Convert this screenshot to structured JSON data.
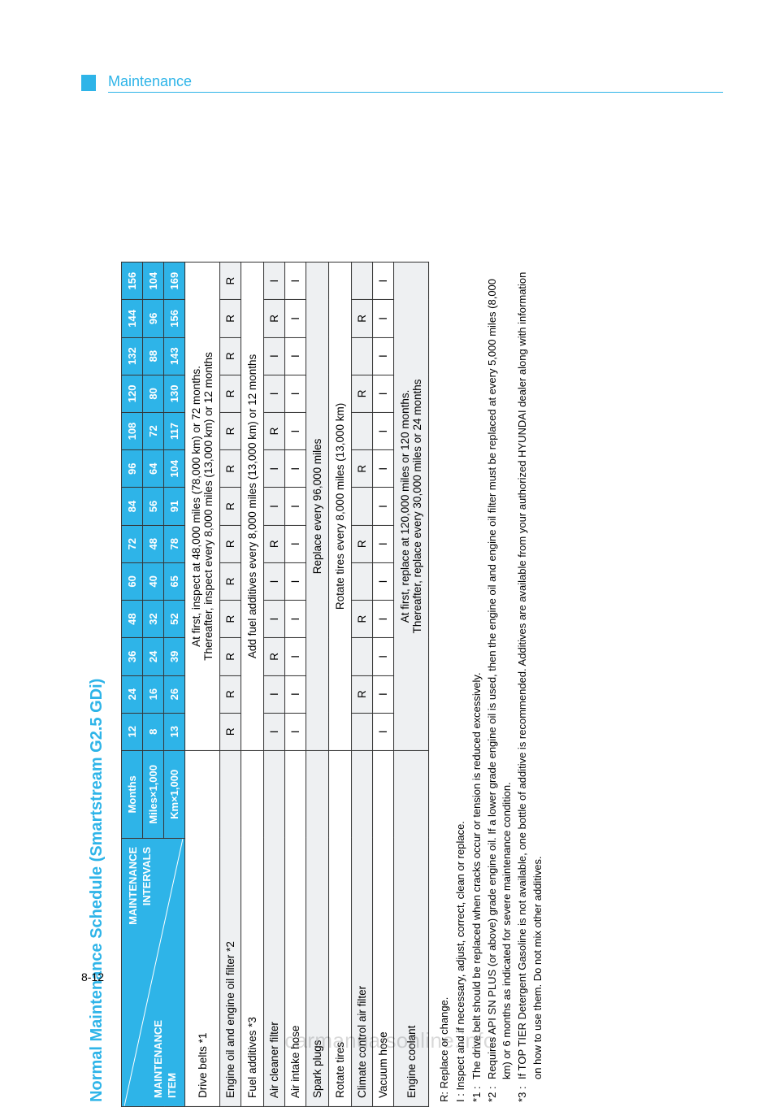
{
  "colors": {
    "accent": "#2eb4e8",
    "zebra": "#eef0f2",
    "border": "#333333",
    "bg": "#ffffff",
    "watermark": "rgba(0,0,0,0.15)"
  },
  "header": {
    "section": "Maintenance",
    "title": "Normal Maintenance Schedule (Smartstream G2.5 GDi)"
  },
  "corner": {
    "top": "MAINTENANCE\nINTERVALS",
    "bottom": "MAINTENANCE\nITEM"
  },
  "intervals": {
    "rows": [
      {
        "label": "Months",
        "values": [
          "12",
          "24",
          "36",
          "48",
          "60",
          "72",
          "84",
          "96",
          "108",
          "120",
          "132",
          "144",
          "156"
        ]
      },
      {
        "label": "Miles×1,000",
        "values": [
          "8",
          "16",
          "24",
          "32",
          "40",
          "48",
          "56",
          "64",
          "72",
          "80",
          "88",
          "96",
          "104"
        ]
      },
      {
        "label": "Km×1,000",
        "values": [
          "13",
          "26",
          "39",
          "52",
          "65",
          "78",
          "91",
          "104",
          "117",
          "130",
          "143",
          "156",
          "169"
        ]
      }
    ]
  },
  "items": [
    {
      "name": "Drive belts *1",
      "span": "At first, inspect at 48,000 miles (78,000 km) or 72 months.\nThereafter, inspect every 8,000 miles (13,000 km) or 12 months",
      "zebra": false
    },
    {
      "name": "Engine oil and engine oil filter *2",
      "cells": [
        "R",
        "R",
        "R",
        "R",
        "R",
        "R",
        "R",
        "R",
        "R",
        "R",
        "R",
        "R",
        "R"
      ],
      "zebra": true
    },
    {
      "name": "Fuel additives *3",
      "span": "Add fuel additives every 8,000 miles (13,000 km) or 12 months",
      "zebra": false
    },
    {
      "name": "Air cleaner filter",
      "cells": [
        "I",
        "I",
        "R",
        "I",
        "I",
        "R",
        "I",
        "I",
        "R",
        "I",
        "I",
        "R",
        "I"
      ],
      "zebra": true
    },
    {
      "name": "Air intake hose",
      "cells": [
        "I",
        "I",
        "I",
        "I",
        "I",
        "I",
        "I",
        "I",
        "I",
        "I",
        "I",
        "I",
        "I"
      ],
      "zebra": false
    },
    {
      "name": "Spark plugs",
      "span": "Replace every 96,000 miles",
      "zebra": true
    },
    {
      "name": "Rotate tires",
      "span": "Rotate tires every 8,000 miles (13,000 km)",
      "zebra": false
    },
    {
      "name": "Climate control air filter",
      "cells": [
        "",
        "R",
        "",
        "R",
        "",
        "R",
        "",
        "R",
        "",
        "R",
        "",
        "R",
        ""
      ],
      "zebra": true
    },
    {
      "name": "Vacuum hose",
      "cells": [
        "I",
        "I",
        "I",
        "I",
        "I",
        "I",
        "I",
        "I",
        "I",
        "I",
        "I",
        "I",
        "I"
      ],
      "zebra": false
    },
    {
      "name": "Engine coolant",
      "span": "At first, replace at 120,000 miles or 120 months.\nThereafter, replace every 30,000 miles or 24 months",
      "zebra": true
    }
  ],
  "legend": {
    "r": "R: Replace or change.",
    "i": "I : Inspect and if necessary, adjust, correct, clean or replace."
  },
  "footnotes": [
    {
      "mark": "*1 :",
      "text": "The drive belt should be replaced when cracks occur or tension is reduced excessively."
    },
    {
      "mark": "*2 :",
      "text": "Requires API SN PLUS (or above) grade engine oil. If a lower grade engine oil is used, then the engine oil and engine oil filter must be replaced at every 5,000 miles (8,000 km) or 6 months as indicated for severe maintenance condition."
    },
    {
      "mark": "*3 :",
      "text": "If TOP TIER Detergent Gasoline is not available, one bottle of additive is recommended. Additives are available from your authorized HYUNDAI dealer along with information on how to use them. Do not mix other additives."
    }
  ],
  "page_number": "8-12",
  "watermark": "carmanualsonline.info"
}
